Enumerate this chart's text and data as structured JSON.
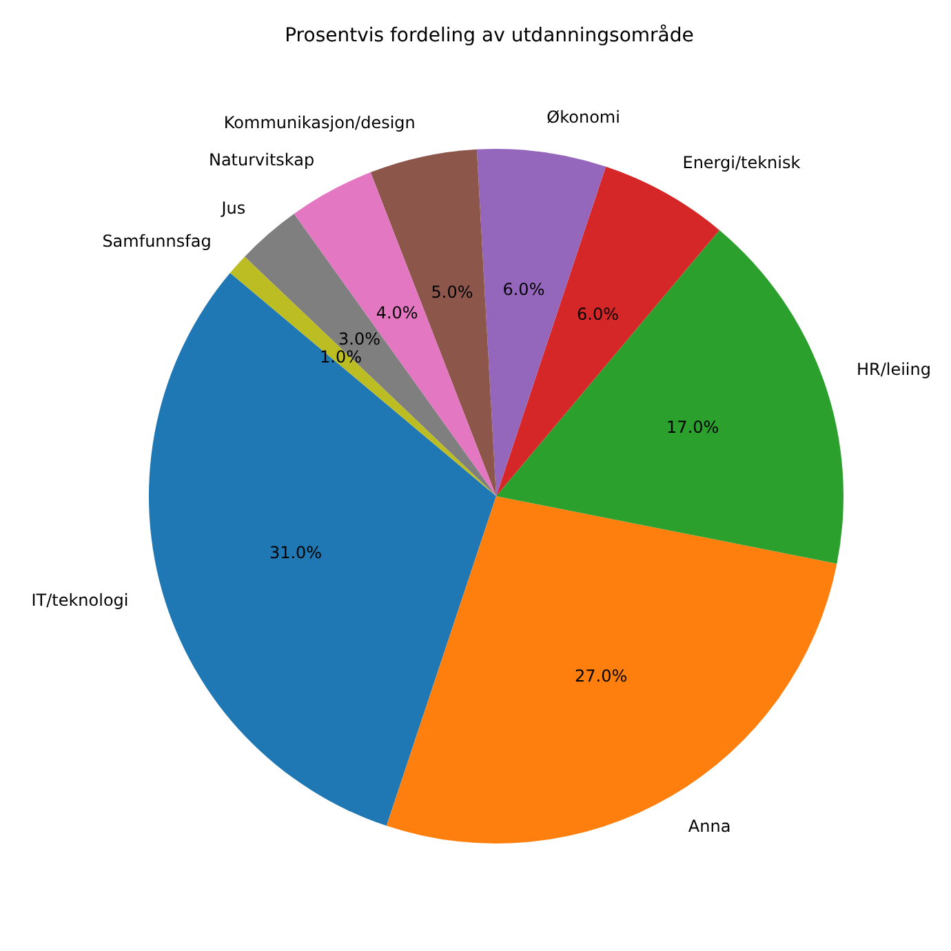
{
  "chart_data": {
    "type": "pie",
    "title": "Prosentvis fordeling av utdanningsområde",
    "categories": [
      "IT/teknologi",
      "Anna",
      "HR/leiing",
      "Energi/teknisk",
      "Økonomi",
      "Kommunikasjon/design",
      "Naturvitskap",
      "Jus",
      "Samfunnsfag"
    ],
    "values": [
      31,
      27,
      17,
      6,
      6,
      5,
      4,
      3,
      1
    ],
    "value_labels": [
      "31.0%",
      "27.0%",
      "17.0%",
      "6.0%",
      "6.0%",
      "5.0%",
      "4.0%",
      "3.0%",
      "1.0%"
    ],
    "colors": [
      "#1f77b4",
      "#ff7f0e",
      "#2ca02c",
      "#d62728",
      "#9467bd",
      "#8c564b",
      "#e377c2",
      "#7f7f7f",
      "#bcbd22"
    ]
  }
}
